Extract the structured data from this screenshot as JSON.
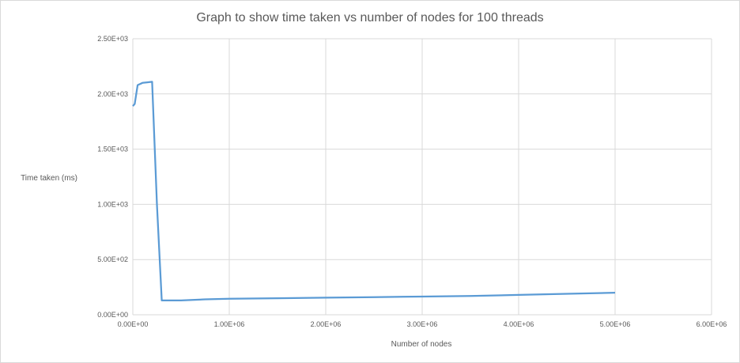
{
  "chart_data": {
    "type": "line",
    "title": "Graph to show time taken vs number of nodes for 100 threads",
    "xlabel": "Number of nodes",
    "ylabel": "Time taken (ms)",
    "xlim": [
      0,
      6000000
    ],
    "ylim": [
      0,
      2500
    ],
    "x_ticks": [
      0,
      1000000,
      2000000,
      3000000,
      4000000,
      5000000,
      6000000
    ],
    "x_tick_labels": [
      "0.00E+00",
      "1.00E+06",
      "2.00E+06",
      "3.00E+06",
      "4.00E+06",
      "5.00E+06",
      "6.00E+06"
    ],
    "y_ticks": [
      0,
      500,
      1000,
      1500,
      2000,
      2500
    ],
    "y_tick_labels": [
      "0.00E+00",
      "5.00E+02",
      "1.00E+03",
      "1.50E+03",
      "2.00E+03",
      "2.50E+03"
    ],
    "grid": true,
    "series": [
      {
        "color": "#5b9bd5",
        "x": [
          0,
          20000,
          50000,
          100000,
          150000,
          200000,
          250000,
          300000,
          500000,
          750000,
          1000000,
          1500000,
          2000000,
          2500000,
          3000000,
          3500000,
          4000000,
          4500000,
          5000000
        ],
        "y": [
          1890,
          1910,
          2080,
          2100,
          2105,
          2110,
          1000,
          130,
          130,
          140,
          145,
          150,
          155,
          160,
          165,
          170,
          180,
          190,
          200
        ]
      }
    ]
  }
}
